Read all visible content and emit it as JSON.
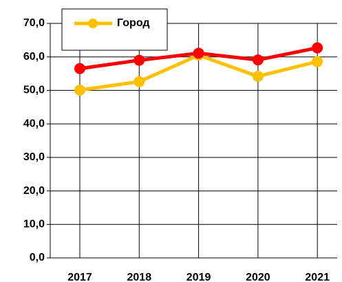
{
  "chart_data": {
    "type": "line",
    "categories": [
      "2017",
      "2018",
      "2019",
      "2020",
      "2021"
    ],
    "series": [
      {
        "name": "Город",
        "color": "#ffc000",
        "values": [
          50.1,
          52.6,
          60.5,
          54.2,
          58.6
        ]
      },
      {
        "color": "#ff0000",
        "values": [
          56.5,
          59.0,
          61.1,
          59.1,
          62.7
        ]
      }
    ],
    "ylim": [
      0,
      70
    ],
    "yticks": [
      {
        "value": 0,
        "label": "0,0"
      },
      {
        "value": 10,
        "label": "10,0"
      },
      {
        "value": 20,
        "label": "20,0"
      },
      {
        "value": 30,
        "label": "30,0"
      },
      {
        "value": 40,
        "label": "40,0"
      },
      {
        "value": 50,
        "label": "50,0"
      },
      {
        "value": 60,
        "label": "60,0"
      },
      {
        "value": 70,
        "label": "70,0"
      }
    ],
    "grid": true
  }
}
